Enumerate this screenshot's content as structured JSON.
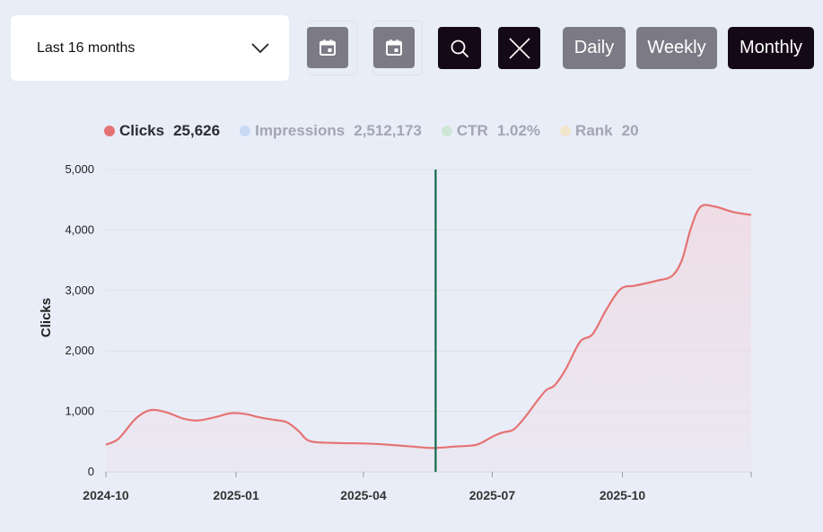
{
  "toolbar": {
    "range_label": "Last 16 months",
    "period_buttons": [
      "Daily",
      "Weekly",
      "Monthly"
    ],
    "active_period": "Monthly",
    "icons": [
      "calendar-start-icon",
      "calendar-end-icon",
      "search-icon",
      "close-icon",
      "chevron-down-icon"
    ]
  },
  "legend": [
    {
      "name": "Clicks",
      "value": "25,626",
      "color": "#e57373",
      "active": true
    },
    {
      "name": "Impressions",
      "value": "2,512,173",
      "color": "#c7d9f5",
      "active": false
    },
    {
      "name": "CTR",
      "value": "1.02%",
      "color": "#cfe6d6",
      "active": false
    },
    {
      "name": "Rank",
      "value": "20",
      "color": "#f1e6cc",
      "active": false
    }
  ],
  "chart_data": {
    "type": "line",
    "ylabel": "Clicks",
    "ylim": [
      0,
      5000
    ],
    "yticks": [
      "0",
      "1,000",
      "2,000",
      "3,000",
      "4,000",
      "5,000"
    ],
    "xticks": [
      "2024-10",
      "2025-01",
      "2025-04",
      "2025-07",
      "2025-10"
    ],
    "xlim": [
      "2024-10-01",
      "2025-12-31"
    ],
    "marker_date": "2025-05-22",
    "marker_color": "#0f6b4a",
    "line_color": "#e57373",
    "series": [
      {
        "points": [
          [
            "2024-10-01",
            450
          ],
          [
            "2024-10-10",
            550
          ],
          [
            "2024-10-22",
            880
          ],
          [
            "2024-11-01",
            1020
          ],
          [
            "2024-11-12",
            990
          ],
          [
            "2024-11-25",
            880
          ],
          [
            "2024-12-05",
            850
          ],
          [
            "2024-12-18",
            910
          ],
          [
            "2024-12-28",
            970
          ],
          [
            "2025-01-07",
            960
          ],
          [
            "2025-01-18",
            900
          ],
          [
            "2025-01-28",
            860
          ],
          [
            "2025-02-06",
            820
          ],
          [
            "2025-02-14",
            680
          ],
          [
            "2025-02-22",
            510
          ],
          [
            "2025-03-10",
            480
          ],
          [
            "2025-04-01",
            470
          ],
          [
            "2025-04-15",
            455
          ],
          [
            "2025-05-05",
            420
          ],
          [
            "2025-05-20",
            395
          ],
          [
            "2025-06-05",
            420
          ],
          [
            "2025-06-20",
            450
          ],
          [
            "2025-07-01",
            580
          ],
          [
            "2025-07-08",
            650
          ],
          [
            "2025-07-16",
            700
          ],
          [
            "2025-07-24",
            900
          ],
          [
            "2025-08-01",
            1150
          ],
          [
            "2025-08-08",
            1350
          ],
          [
            "2025-08-14",
            1430
          ],
          [
            "2025-08-22",
            1700
          ],
          [
            "2025-09-01",
            2150
          ],
          [
            "2025-09-10",
            2280
          ],
          [
            "2025-09-20",
            2700
          ],
          [
            "2025-09-30",
            3030
          ],
          [
            "2025-10-10",
            3080
          ],
          [
            "2025-10-25",
            3160
          ],
          [
            "2025-11-05",
            3240
          ],
          [
            "2025-11-12",
            3500
          ],
          [
            "2025-11-18",
            4000
          ],
          [
            "2025-11-25",
            4380
          ],
          [
            "2025-12-05",
            4390
          ],
          [
            "2025-12-18",
            4300
          ],
          [
            "2025-12-31",
            4250
          ]
        ]
      }
    ]
  }
}
